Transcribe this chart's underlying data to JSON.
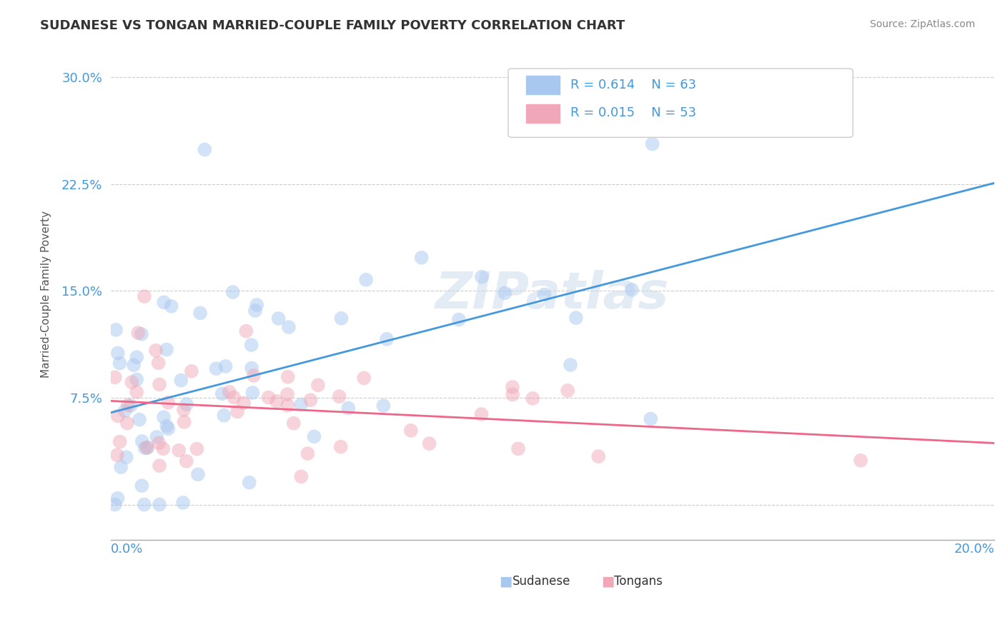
{
  "title": "SUDANESE VS TONGAN MARRIED-COUPLE FAMILY POVERTY CORRELATION CHART",
  "source": "Source: ZipAtlas.com",
  "ylabel": "Married-Couple Family Poverty",
  "watermark": "ZIPatlas",
  "xlim": [
    0.0,
    0.2
  ],
  "ylim": [
    -0.025,
    0.32
  ],
  "yticks": [
    0.0,
    0.075,
    0.15,
    0.225,
    0.3
  ],
  "ytick_labels": [
    "",
    "7.5%",
    "15.0%",
    "22.5%",
    "30.0%"
  ],
  "sudanese_R": 0.614,
  "sudanese_N": 63,
  "tongan_R": 0.015,
  "tongan_N": 53,
  "sudanese_color": "#a8c8f0",
  "tongan_color": "#f0a8b8",
  "sudanese_line_color": "#4499dd",
  "tongan_line_color": "#ee6688",
  "background_color": "#ffffff",
  "grid_color": "#cccccc",
  "title_color": "#333333",
  "axis_label_color": "#4499dd",
  "legend_text_color": "#4499dd"
}
